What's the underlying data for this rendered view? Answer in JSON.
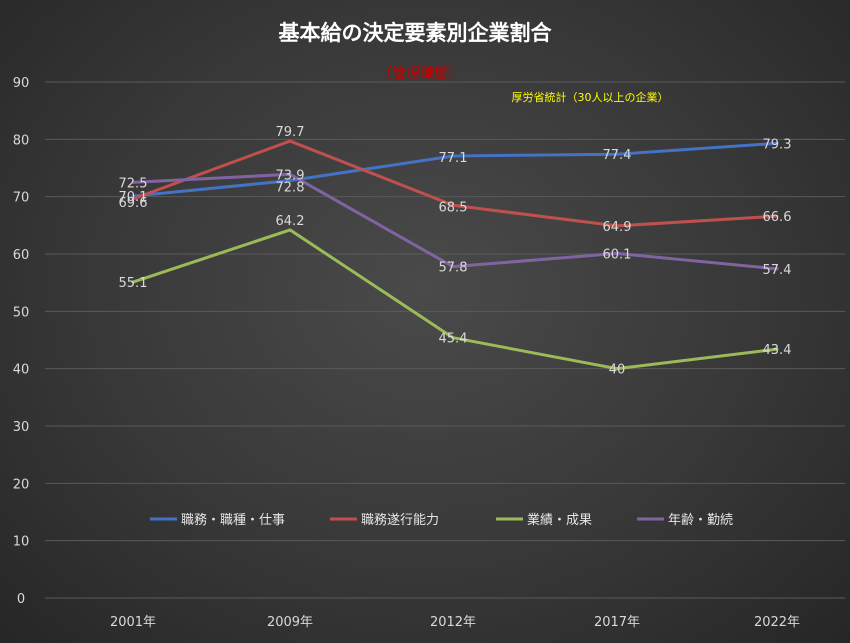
{
  "chart_data": {
    "type": "line",
    "title": "基本給の決定要素別企業割合",
    "subtitle": "（管理職層）",
    "source_note": "厚労省統計（30人以上の企業）",
    "categories": [
      "2001年",
      "2009年",
      "2012年",
      "2017年",
      "2022年"
    ],
    "ylim": [
      0,
      90
    ],
    "yticks": [
      "0",
      "10",
      "20",
      "30",
      "40",
      "50",
      "60",
      "70",
      "80",
      "90"
    ],
    "grid": true,
    "legend_position": "bottom",
    "series": [
      {
        "name": "職務・職種・仕事",
        "color": "#4472c4",
        "values": [
          70.1,
          72.8,
          77.1,
          77.4,
          79.3
        ],
        "labels": [
          "70.1",
          "72.8",
          "77.1",
          "77.4",
          "79.3"
        ]
      },
      {
        "name": "職務遂行能力",
        "color": "#c0504d",
        "values": [
          69.6,
          79.7,
          68.5,
          64.9,
          66.6
        ],
        "labels": [
          "69.6",
          "79.7",
          "68.5",
          "64.9",
          "66.6"
        ]
      },
      {
        "name": "業績・成果",
        "color": "#9bbb59",
        "values": [
          55.1,
          64.2,
          45.4,
          40,
          43.4
        ],
        "labels": [
          "55.1",
          "64.2",
          "45.4",
          "40",
          "43.4"
        ]
      },
      {
        "name": "年齢・勤続",
        "color": "#8064a2",
        "values": [
          72.5,
          73.9,
          57.8,
          60.1,
          57.4
        ],
        "labels": [
          "72.5",
          "73.9",
          "57.8",
          "60.1",
          "57.4"
        ]
      }
    ]
  }
}
